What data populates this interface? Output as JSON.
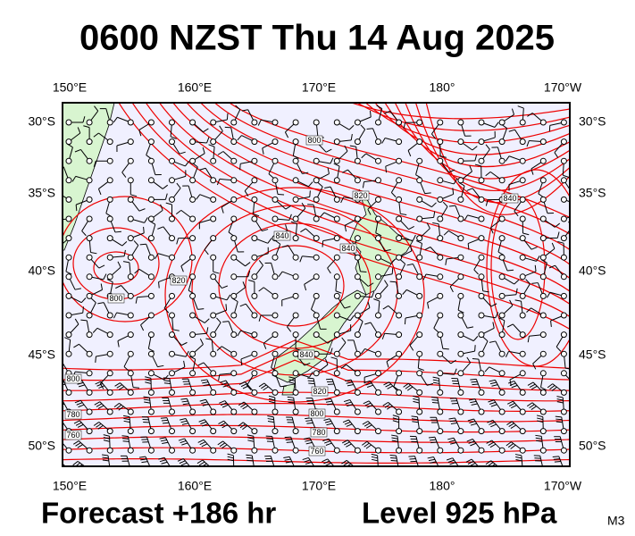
{
  "title": "0600 NZST Thu 14 Aug 2025",
  "footer": {
    "forecast": "Forecast +186 hr",
    "level": "Level 925 hPa",
    "code": "M3"
  },
  "axes": {
    "top": [
      "150°E",
      "160°E",
      "170°E",
      "180°",
      "170°W"
    ],
    "bottom": [
      "150°E",
      "160°E",
      "170°E",
      "180°",
      "170°W"
    ],
    "left": [
      "30°S",
      "35°S",
      "40°S",
      "45°S",
      "50°S"
    ],
    "right": [
      "30°S",
      "35°S",
      "40°S",
      "45°S",
      "50°S"
    ]
  },
  "contour_labels": [
    "800",
    "820",
    "840",
    "840",
    "840",
    "820",
    "800",
    "840",
    "820",
    "800",
    "800",
    "780",
    "780",
    "760",
    "760"
  ]
}
